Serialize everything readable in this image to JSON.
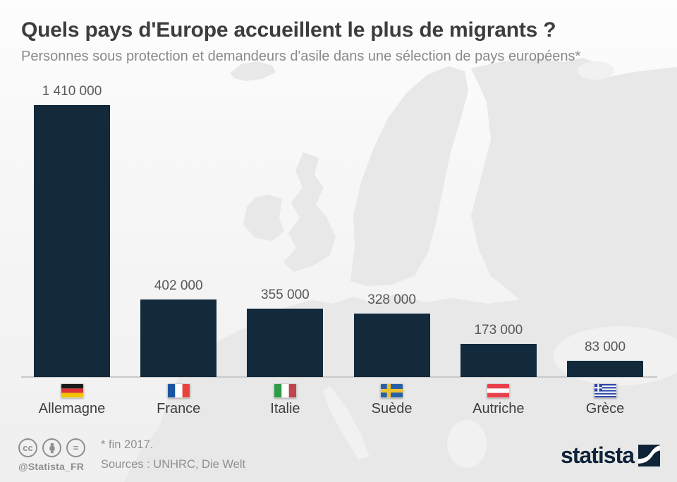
{
  "header": {
    "title": "Quels pays d'Europe accueillent le plus de migrants ?",
    "subtitle": "Personnes sous protection et demandeurs d'asile dans une sélection de pays européens*"
  },
  "chart_data": {
    "type": "bar",
    "title": "Quels pays d'Europe accueillent le plus de migrants ?",
    "subtitle": "Personnes sous protection et demandeurs d'asile dans une sélection de pays européens*",
    "categories": [
      "Allemagne",
      "France",
      "Italie",
      "Suède",
      "Autriche",
      "Grèce"
    ],
    "values": [
      1410000,
      402000,
      355000,
      328000,
      173000,
      83000
    ],
    "value_labels": [
      "1 410 000",
      "402 000",
      "355 000",
      "328 000",
      "173 000",
      "83 000"
    ],
    "flag_ids": [
      "germany",
      "france",
      "italy",
      "sweden",
      "austria",
      "greece"
    ],
    "xlabel": "",
    "ylabel": "",
    "ylim": [
      0,
      1410000
    ],
    "grid": false,
    "legend": "none",
    "orientation": "vertical"
  },
  "flags": {
    "germany": {
      "layout": "horizontal",
      "colors": [
        "#1a1a1a",
        "#dd3333",
        "#f2c500"
      ]
    },
    "france": {
      "layout": "vertical",
      "colors": [
        "#1b55a0",
        "#ffffff",
        "#e8423c"
      ]
    },
    "italy": {
      "layout": "vertical",
      "colors": [
        "#2e9c47",
        "#ffffff",
        "#c0434e"
      ]
    },
    "sweden": {
      "layout": "nordic-cross",
      "colors": [
        "#2660a6",
        "#f0c02e"
      ]
    },
    "austria": {
      "layout": "horizontal",
      "colors": [
        "#e8404a",
        "#ffffff",
        "#e8404a"
      ]
    },
    "greece": {
      "layout": "greek-stripes",
      "colors": [
        "#2b47a5",
        "#ffffff"
      ]
    }
  },
  "footer": {
    "note": "* fin 2017.",
    "sources": "Sources : UNHRC, Die Welt",
    "handle": "@Statista_FR",
    "license_labels": {
      "cc": "cc",
      "no_derivatives": "="
    },
    "brand": "statista"
  },
  "colors": {
    "bar": "#122a3c",
    "map": "#e8e8e8",
    "sea": "#f1f1f1",
    "axis_line": "#c9c9c9",
    "title_text": "#3d3d3d",
    "subtitle_text": "#8a8a8a",
    "value_text": "#56585a",
    "category_text": "#3f3f3f",
    "footer_text": "#8f8f8f",
    "brand_navy": "#0f2439"
  }
}
